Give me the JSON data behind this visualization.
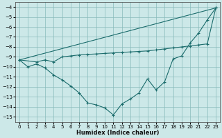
{
  "xlabel": "Humidex (Indice chaleur)",
  "bg_color": "#cce8e8",
  "grid_color": "#88bbbb",
  "line_color": "#1a6b6b",
  "xlim": [
    -0.5,
    23.5
  ],
  "ylim": [
    -15.5,
    -3.5
  ],
  "xticks": [
    0,
    1,
    2,
    3,
    4,
    5,
    6,
    7,
    8,
    9,
    10,
    11,
    12,
    13,
    14,
    15,
    16,
    17,
    18,
    19,
    20,
    21,
    22,
    23
  ],
  "yticks": [
    -4,
    -5,
    -6,
    -7,
    -8,
    -9,
    -10,
    -11,
    -12,
    -13,
    -14,
    -15
  ],
  "line1_x": [
    0,
    1,
    2,
    3,
    4,
    5,
    6,
    7,
    8,
    9,
    10,
    11,
    12,
    13,
    14,
    15,
    16,
    17,
    18,
    19,
    20,
    21,
    22,
    23
  ],
  "line1_y": [
    -9.3,
    -10.0,
    -9.7,
    -10.1,
    -10.8,
    -11.3,
    -11.9,
    -12.6,
    -13.6,
    -13.8,
    -14.1,
    -14.8,
    -13.7,
    -13.2,
    -12.6,
    -11.2,
    -12.3,
    -11.5,
    -9.2,
    -8.9,
    -7.6,
    -6.6,
    -5.3,
    -4.1
  ],
  "line2_x": [
    0,
    23
  ],
  "line2_y": [
    -9.3,
    -4.1
  ],
  "line3_x": [
    0,
    2,
    3,
    4,
    5,
    6,
    7,
    8,
    9,
    10,
    11,
    12,
    13,
    14,
    15,
    16,
    17,
    18,
    19,
    20,
    21,
    22,
    23
  ],
  "line3_y": [
    -9.3,
    -9.5,
    -9.3,
    -9.5,
    -9.0,
    -8.9,
    -8.8,
    -8.75,
    -8.7,
    -8.65,
    -8.6,
    -8.55,
    -8.5,
    -8.45,
    -8.4,
    -8.3,
    -8.2,
    -8.1,
    -8.0,
    -7.9,
    -7.8,
    -7.7,
    -4.1
  ]
}
